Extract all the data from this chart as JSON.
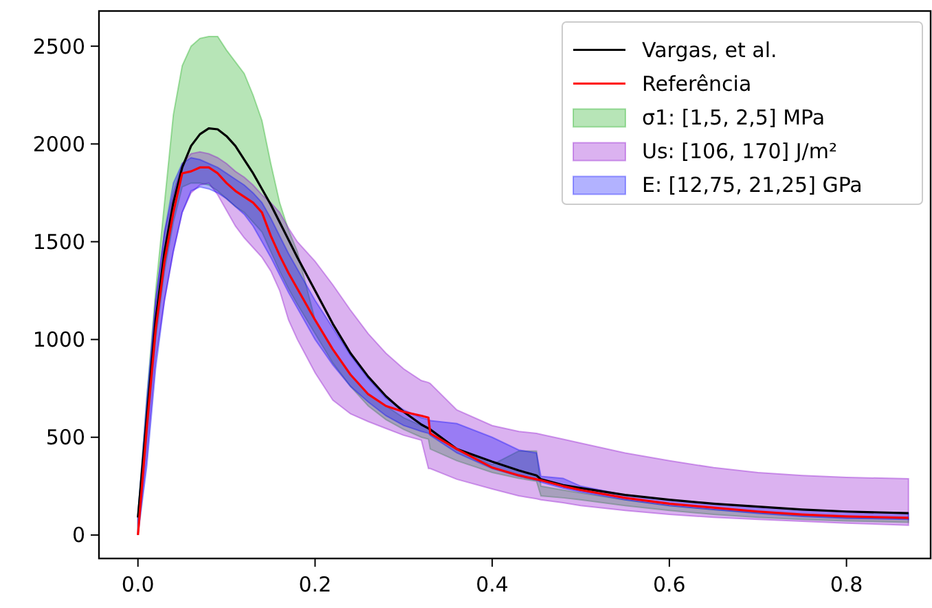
{
  "chart_data": {
    "type": "line",
    "x": [
      0,
      0.01,
      0.02,
      0.03,
      0.04,
      0.05,
      0.06,
      0.07,
      0.08,
      0.09,
      0.1,
      0.11,
      0.12,
      0.13,
      0.14,
      0.15,
      0.16,
      0.17,
      0.18,
      0.2,
      0.22,
      0.24,
      0.26,
      0.28,
      0.3,
      0.32,
      0.328,
      0.33,
      0.36,
      0.4,
      0.43,
      0.45,
      0.455,
      0.48,
      0.5,
      0.55,
      0.6,
      0.65,
      0.7,
      0.75,
      0.8,
      0.87
    ],
    "xlim": [
      -0.044,
      0.895
    ],
    "ylim": [
      -120,
      2680
    ],
    "xticks": [
      {
        "value": 0,
        "label": "0.0"
      },
      {
        "value": 0.2,
        "label": "0.2"
      },
      {
        "value": 0.4,
        "label": "0.4"
      },
      {
        "value": 0.6,
        "label": "0.6"
      },
      {
        "value": 0.8,
        "label": "0.8"
      }
    ],
    "yticks": [
      0,
      500,
      1000,
      1500,
      2000,
      2500
    ],
    "grid": false,
    "legend": "top right",
    "series": [
      {
        "name": "Vargas, et al.",
        "color": "#000000",
        "values": [
          90,
          600,
          1100,
          1450,
          1700,
          1880,
          1990,
          2050,
          2080,
          2075,
          2040,
          1990,
          1920,
          1850,
          1770,
          1690,
          1600,
          1510,
          1420,
          1250,
          1080,
          930,
          810,
          710,
          630,
          565,
          545,
          540,
          440,
          375,
          330,
          305,
          285,
          255,
          240,
          205,
          180,
          160,
          145,
          130,
          120,
          112
        ]
      },
      {
        "name": "Referência",
        "color": "#ff0000",
        "values": [
          0,
          550,
          1050,
          1400,
          1650,
          1850,
          1860,
          1880,
          1880,
          1850,
          1800,
          1760,
          1730,
          1700,
          1650,
          1530,
          1430,
          1340,
          1260,
          1100,
          950,
          820,
          720,
          660,
          630,
          610,
          600,
          520,
          440,
          345,
          305,
          285,
          280,
          250,
          230,
          190,
          160,
          140,
          120,
          105,
          95,
          88
        ]
      },
      {
        "name": "σ1: [1,5, 2,5] MPa",
        "type": "area",
        "color": "#11aa11",
        "values": [
          null,
          null,
          null,
          null,
          null,
          null,
          null,
          null,
          null,
          null,
          null,
          null,
          null,
          null,
          null,
          null,
          null,
          null,
          null,
          null,
          null,
          null,
          null,
          null,
          null,
          null,
          null,
          null,
          null,
          null,
          null,
          null,
          null,
          null,
          null,
          null,
          null,
          null,
          null,
          null,
          null,
          null
        ],
        "lower": [
          0,
          500,
          1000,
          1350,
          1600,
          1780,
          1800,
          1800,
          1790,
          1760,
          1720,
          1680,
          1650,
          1600,
          1550,
          1450,
          1350,
          1260,
          1180,
          1030,
          880,
          760,
          660,
          590,
          540,
          500,
          490,
          440,
          380,
          320,
          290,
          275,
          200,
          190,
          180,
          150,
          125,
          105,
          90,
          80,
          72,
          65
        ],
        "upper": [
          100,
          700,
          1250,
          1700,
          2150,
          2400,
          2500,
          2540,
          2550,
          2550,
          2480,
          2420,
          2360,
          2250,
          2120,
          1900,
          1700,
          1560,
          1450,
          1100,
          950,
          820,
          720,
          660,
          600,
          560,
          550,
          520,
          440,
          360,
          430,
          430,
          250,
          230,
          215,
          180,
          150,
          130,
          115,
          100,
          90,
          85
        ]
      },
      {
        "name": "Us: [106, 170] J/m²",
        "type": "area",
        "color": "#8800cc",
        "values": [
          null,
          null,
          null,
          null,
          null,
          null,
          null,
          null,
          null,
          null,
          null,
          null,
          null,
          null,
          null,
          null,
          null,
          null,
          null,
          null,
          null,
          null,
          null,
          null,
          null,
          null,
          null,
          null,
          null,
          null,
          null,
          null,
          null,
          null,
          null,
          null,
          null,
          null,
          null,
          null,
          null,
          null
        ],
        "lower": [
          0,
          400,
          900,
          1200,
          1450,
          1650,
          1750,
          1790,
          1800,
          1740,
          1660,
          1580,
          1520,
          1470,
          1420,
          1350,
          1250,
          1100,
          1000,
          830,
          690,
          620,
          580,
          545,
          510,
          485,
          340,
          340,
          285,
          235,
          200,
          185,
          180,
          165,
          150,
          125,
          105,
          90,
          80,
          70,
          60,
          50
        ],
        "upper": [
          100,
          650,
          1200,
          1550,
          1750,
          1900,
          1950,
          1960,
          1950,
          1930,
          1900,
          1860,
          1830,
          1790,
          1740,
          1700,
          1650,
          1570,
          1500,
          1400,
          1280,
          1150,
          1030,
          930,
          850,
          790,
          780,
          775,
          640,
          560,
          530,
          520,
          515,
          490,
          470,
          420,
          380,
          345,
          320,
          305,
          295,
          288
        ]
      },
      {
        "name": "E: [12,75, 21,25] GPa",
        "type": "area",
        "color": "#0000ff",
        "values": [
          null,
          null,
          null,
          null,
          null,
          null,
          null,
          null,
          null,
          null,
          null,
          null,
          null,
          null,
          null,
          null,
          null,
          null,
          null,
          null,
          null,
          null,
          null,
          null,
          null,
          null,
          null,
          null,
          null,
          null,
          null,
          null,
          null,
          null,
          null,
          null,
          null,
          null,
          null,
          null,
          null,
          null
        ],
        "lower": [
          0,
          350,
          850,
          1200,
          1450,
          1650,
          1760,
          1780,
          1770,
          1750,
          1720,
          1680,
          1640,
          1580,
          1500,
          1420,
          1330,
          1240,
          1160,
          1000,
          870,
          760,
          680,
          610,
          560,
          530,
          520,
          510,
          420,
          340,
          300,
          280,
          270,
          240,
          220,
          180,
          150,
          130,
          110,
          95,
          85,
          80
        ],
        "upper": [
          100,
          700,
          1200,
          1550,
          1800,
          1900,
          1930,
          1920,
          1900,
          1880,
          1850,
          1820,
          1790,
          1750,
          1700,
          1620,
          1530,
          1440,
          1360,
          1200,
          1060,
          920,
          800,
          700,
          640,
          600,
          590,
          585,
          570,
          500,
          435,
          420,
          300,
          290,
          250,
          205,
          180,
          160,
          145,
          130,
          120,
          112
        ]
      }
    ]
  }
}
